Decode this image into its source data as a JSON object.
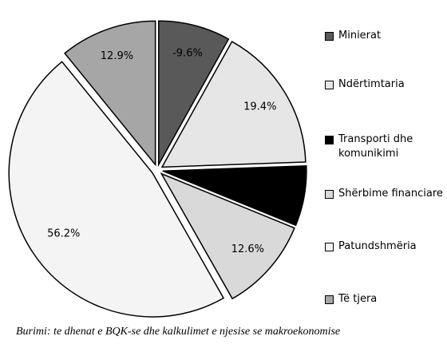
{
  "chart_data": {
    "type": "pie",
    "categories": [
      "Minierat",
      "Ndërtimtaria",
      "Transporti dhe komunikimi",
      "Shërbime financiare",
      "Patundshmëria",
      "Të tjera"
    ],
    "values": [
      -9.6,
      19.4,
      8,
      12.6,
      56.2,
      12.9
    ],
    "value_labels": [
      "-9.6%",
      "19.4%",
      null,
      "12.6%",
      "56.2%",
      "12.9%"
    ],
    "colors": [
      "#595959",
      "#e6e6e6",
      "#000000",
      "#d9d9d9",
      "#f4f4f4",
      "#a6a6a6"
    ],
    "source": "Burimi: te dhenat e BQK-se dhe kalkulimet e njesise se makroekonomise"
  }
}
